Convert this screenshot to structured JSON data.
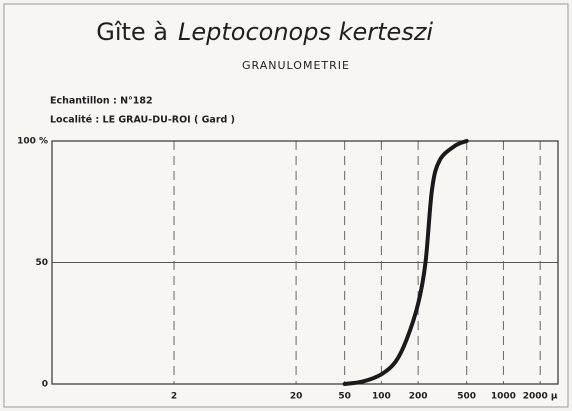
{
  "chart_data": {
    "type": "line",
    "title": "Gîte à",
    "title_species": "Leptoconops kerteszi",
    "subtitle": "GRANULOMETRIE",
    "annotations": [
      "Echantillon : N°182",
      "Localité : LE GRAU-DU-ROI ( Gard )"
    ],
    "x": [
      50,
      70,
      100,
      130,
      160,
      200,
      230,
      260,
      300,
      400,
      500
    ],
    "series": [
      {
        "name": "Granulométrie",
        "color": "#1a1a1a",
        "values": [
          0,
          1,
          4,
          9,
          18,
          33,
          50,
          80,
          92,
          98,
          100
        ]
      }
    ],
    "xscale": "log",
    "xlim": [
      0.2,
      2800
    ],
    "xticks": [
      2,
      20,
      50,
      100,
      200,
      500,
      1000,
      {
        "value": 2000,
        "label": "2000 µ"
      }
    ],
    "ylim": [
      0,
      100
    ],
    "yticks": [
      0,
      50,
      {
        "value": 100,
        "label": "100 %"
      }
    ],
    "grid": true
  }
}
